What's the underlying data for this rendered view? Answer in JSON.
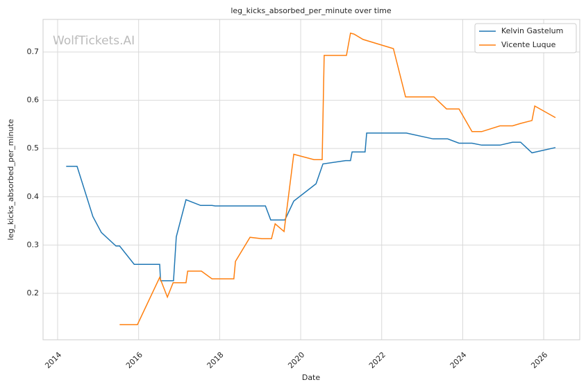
{
  "chart_data": {
    "type": "line",
    "title": "leg_kicks_absorbed_per_minute over time",
    "watermark": "WolfTickets.AI",
    "x_label": "Date",
    "y_label": "leg_kicks_absorbed_per_minute",
    "xlim": [
      2013.64,
      2026.89
    ],
    "ylim": [
      0.1037,
      0.7675
    ],
    "xticks": [
      2014,
      2016,
      2018,
      2020,
      2022,
      2024,
      2026
    ],
    "yticks": [
      0.2,
      0.3,
      0.4,
      0.5,
      0.6,
      0.7
    ],
    "grid": true,
    "legend": "upper right",
    "series": [
      {
        "name": "Kelvin Gastelum",
        "color": "#1f77b4",
        "x": [
          2014.21,
          2014.48,
          2014.87,
          2015.08,
          2015.44,
          2015.53,
          2015.89,
          2016.52,
          2016.54,
          2016.86,
          2016.93,
          2017.17,
          2017.53,
          2017.81,
          2017.89,
          2019.13,
          2019.26,
          2019.61,
          2019.83,
          2020.38,
          2020.55,
          2021.11,
          2021.23,
          2021.27,
          2021.59,
          2021.63,
          2022.61,
          2023.27,
          2023.63,
          2023.91,
          2024.23,
          2024.47,
          2024.92,
          2025.23,
          2025.43,
          2025.71,
          2026.29
        ],
        "values": [
          0.463,
          0.463,
          0.359,
          0.326,
          0.298,
          0.298,
          0.26,
          0.26,
          0.226,
          0.226,
          0.317,
          0.394,
          0.382,
          0.382,
          0.381,
          0.381,
          0.352,
          0.352,
          0.391,
          0.427,
          0.468,
          0.475,
          0.475,
          0.493,
          0.493,
          0.532,
          0.532,
          0.52,
          0.52,
          0.511,
          0.511,
          0.507,
          0.507,
          0.513,
          0.513,
          0.491,
          0.502
        ]
      },
      {
        "name": "Vicente Luque",
        "color": "#ff7f0e",
        "x": [
          2015.53,
          2015.97,
          2016.52,
          2016.71,
          2016.85,
          2017.17,
          2017.21,
          2017.55,
          2017.81,
          2018.35,
          2018.39,
          2018.75,
          2019.04,
          2019.28,
          2019.37,
          2019.59,
          2019.83,
          2020.33,
          2020.53,
          2020.58,
          2021.13,
          2021.23,
          2021.32,
          2021.54,
          2022.29,
          2022.59,
          2023.29,
          2023.6,
          2023.91,
          2024.23,
          2024.47,
          2024.92,
          2025.23,
          2025.43,
          2025.71,
          2025.78,
          2026.29
        ],
        "values": [
          0.135,
          0.135,
          0.233,
          0.192,
          0.222,
          0.222,
          0.246,
          0.246,
          0.23,
          0.23,
          0.266,
          0.316,
          0.313,
          0.313,
          0.344,
          0.328,
          0.488,
          0.477,
          0.477,
          0.693,
          0.693,
          0.739,
          0.737,
          0.726,
          0.707,
          0.607,
          0.607,
          0.582,
          0.582,
          0.535,
          0.535,
          0.547,
          0.547,
          0.552,
          0.558,
          0.588,
          0.564
        ]
      }
    ]
  }
}
